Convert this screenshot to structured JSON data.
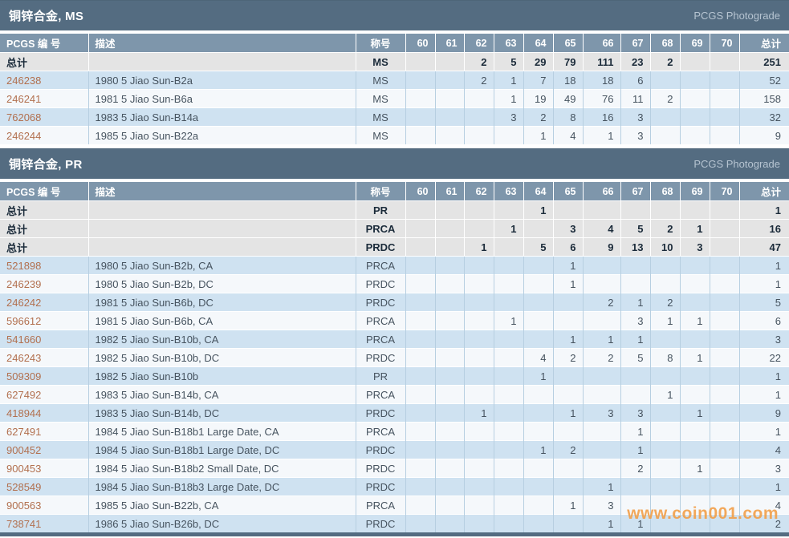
{
  "watermark": "www.coin001.com",
  "columns": [
    "PCGS 编 号",
    "描述",
    "称号",
    "60",
    "61",
    "62",
    "63",
    "64",
    "65",
    "66",
    "67",
    "68",
    "69",
    "70",
    "总计"
  ],
  "colors": {
    "titlebar": "#546c81",
    "column_header": "#7e96ab",
    "total_row": "#e4e4e4",
    "row_blue": "#cfe2f1",
    "row_white": "#f5f8fb",
    "pcgs_link": "#b2704f",
    "watermark": "#f29d45"
  },
  "sections": [
    {
      "title": "铜锌合金, MS",
      "photograde": "PCGS Photograde",
      "totals": [
        {
          "label": "总计",
          "desig": "MS",
          "g": [
            "",
            "",
            "2",
            "5",
            "29",
            "79",
            "111",
            "23",
            "2",
            "",
            ""
          ],
          "total": "251"
        }
      ],
      "rows": [
        {
          "pcgs": "246238",
          "desc": "1980 5 Jiao Sun-B2a",
          "desig": "MS",
          "g": [
            "",
            "",
            "2",
            "1",
            "7",
            "18",
            "18",
            "6",
            "",
            "",
            ""
          ],
          "total": "52"
        },
        {
          "pcgs": "246241",
          "desc": "1981 5 Jiao Sun-B6a",
          "desig": "MS",
          "g": [
            "",
            "",
            "",
            "1",
            "19",
            "49",
            "76",
            "11",
            "2",
            "",
            ""
          ],
          "total": "158"
        },
        {
          "pcgs": "762068",
          "desc": "1983 5 Jiao Sun-B14a",
          "desig": "MS",
          "g": [
            "",
            "",
            "",
            "3",
            "2",
            "8",
            "16",
            "3",
            "",
            "",
            ""
          ],
          "total": "32"
        },
        {
          "pcgs": "246244",
          "desc": "1985 5 Jiao Sun-B22a",
          "desig": "MS",
          "g": [
            "",
            "",
            "",
            "",
            "1",
            "4",
            "1",
            "3",
            "",
            "",
            ""
          ],
          "total": "9"
        }
      ]
    },
    {
      "title": "铜锌合金, PR",
      "photograde": "PCGS Photograde",
      "totals": [
        {
          "label": "总计",
          "desig": "PR",
          "g": [
            "",
            "",
            "",
            "",
            "1",
            "",
            "",
            "",
            "",
            "",
            ""
          ],
          "total": "1"
        },
        {
          "label": "总计",
          "desig": "PRCA",
          "g": [
            "",
            "",
            "",
            "1",
            "",
            "3",
            "4",
            "5",
            "2",
            "1",
            ""
          ],
          "total": "16"
        },
        {
          "label": "总计",
          "desig": "PRDC",
          "g": [
            "",
            "",
            "1",
            "",
            "5",
            "6",
            "9",
            "13",
            "10",
            "3",
            ""
          ],
          "total": "47"
        }
      ],
      "rows": [
        {
          "pcgs": "521898",
          "desc": "1980 5 Jiao Sun-B2b, CA",
          "desig": "PRCA",
          "g": [
            "",
            "",
            "",
            "",
            "",
            "1",
            "",
            "",
            "",
            "",
            ""
          ],
          "total": "1"
        },
        {
          "pcgs": "246239",
          "desc": "1980 5 Jiao Sun-B2b, DC",
          "desig": "PRDC",
          "g": [
            "",
            "",
            "",
            "",
            "",
            "1",
            "",
            "",
            "",
            "",
            ""
          ],
          "total": "1"
        },
        {
          "pcgs": "246242",
          "desc": "1981 5 Jiao Sun-B6b, DC",
          "desig": "PRDC",
          "g": [
            "",
            "",
            "",
            "",
            "",
            "",
            "2",
            "1",
            "2",
            "",
            ""
          ],
          "total": "5"
        },
        {
          "pcgs": "596612",
          "desc": "1981 5 Jiao Sun-B6b, CA",
          "desig": "PRCA",
          "g": [
            "",
            "",
            "",
            "1",
            "",
            "",
            "",
            "3",
            "1",
            "1",
            ""
          ],
          "total": "6"
        },
        {
          "pcgs": "541660",
          "desc": "1982 5 Jiao Sun-B10b, CA",
          "desig": "PRCA",
          "g": [
            "",
            "",
            "",
            "",
            "",
            "1",
            "1",
            "1",
            "",
            "",
            ""
          ],
          "total": "3"
        },
        {
          "pcgs": "246243",
          "desc": "1982 5 Jiao Sun-B10b, DC",
          "desig": "PRDC",
          "g": [
            "",
            "",
            "",
            "",
            "4",
            "2",
            "2",
            "5",
            "8",
            "1",
            ""
          ],
          "total": "22"
        },
        {
          "pcgs": "509309",
          "desc": "1982 5 Jiao Sun-B10b",
          "desig": "PR",
          "g": [
            "",
            "",
            "",
            "",
            "1",
            "",
            "",
            "",
            "",
            "",
            ""
          ],
          "total": "1"
        },
        {
          "pcgs": "627492",
          "desc": "1983 5 Jiao Sun-B14b, CA",
          "desig": "PRCA",
          "g": [
            "",
            "",
            "",
            "",
            "",
            "",
            "",
            "",
            "1",
            "",
            ""
          ],
          "total": "1"
        },
        {
          "pcgs": "418944",
          "desc": "1983 5 Jiao Sun-B14b, DC",
          "desig": "PRDC",
          "g": [
            "",
            "",
            "1",
            "",
            "",
            "1",
            "3",
            "3",
            "",
            "1",
            ""
          ],
          "total": "9"
        },
        {
          "pcgs": "627491",
          "desc": "1984 5 Jiao Sun-B18b1 Large Date, CA",
          "desig": "PRCA",
          "g": [
            "",
            "",
            "",
            "",
            "",
            "",
            "",
            "1",
            "",
            "",
            ""
          ],
          "total": "1"
        },
        {
          "pcgs": "900452",
          "desc": "1984 5 Jiao Sun-B18b1 Large Date, DC",
          "desig": "PRDC",
          "g": [
            "",
            "",
            "",
            "",
            "1",
            "2",
            "",
            "1",
            "",
            "",
            ""
          ],
          "total": "4"
        },
        {
          "pcgs": "900453",
          "desc": "1984 5 Jiao Sun-B18b2 Small Date, DC",
          "desig": "PRDC",
          "g": [
            "",
            "",
            "",
            "",
            "",
            "",
            "",
            "2",
            "",
            "1",
            ""
          ],
          "total": "3"
        },
        {
          "pcgs": "528549",
          "desc": "1984 5 Jiao Sun-B18b3 Large Date, DC",
          "desig": "PRDC",
          "g": [
            "",
            "",
            "",
            "",
            "",
            "",
            "1",
            "",
            "",
            "",
            ""
          ],
          "total": "1"
        },
        {
          "pcgs": "900563",
          "desc": "1985 5 Jiao Sun-B22b, CA",
          "desig": "PRCA",
          "g": [
            "",
            "",
            "",
            "",
            "",
            "1",
            "3",
            "",
            "",
            "",
            ""
          ],
          "total": "4"
        },
        {
          "pcgs": "738741",
          "desc": "1986 5 Jiao Sun-B26b, DC",
          "desig": "PRDC",
          "g": [
            "",
            "",
            "",
            "",
            "",
            "",
            "1",
            "1",
            "",
            "",
            ""
          ],
          "total": "2"
        }
      ]
    }
  ]
}
